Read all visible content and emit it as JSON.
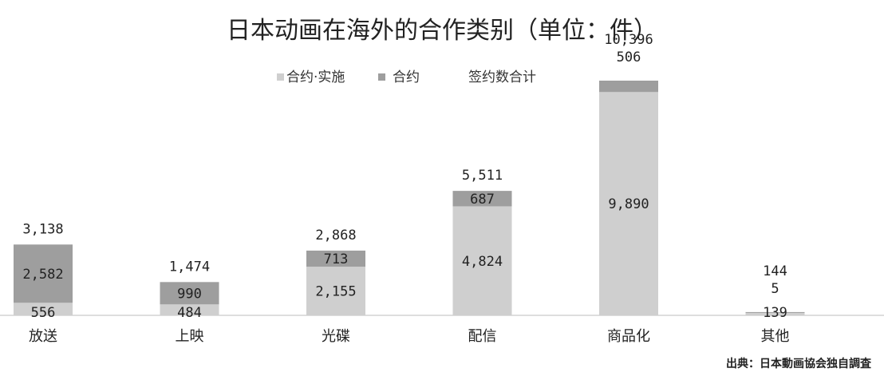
{
  "chart_data": {
    "type": "bar",
    "stacked": true,
    "title": "日本动画在海外的合作类别（单位：件）",
    "categories": [
      "放送",
      "上映",
      "光碟",
      "配信",
      "商品化",
      "其他"
    ],
    "series": [
      {
        "name": "合约·实施",
        "color": "#cfcfcf",
        "values": [
          556,
          484,
          2155,
          4824,
          9890,
          139
        ],
        "labels": [
          "556",
          "484",
          "2,155",
          "4,824",
          "9,890",
          "139"
        ]
      },
      {
        "name": "合约",
        "color": "#9e9e9e",
        "values": [
          2582,
          990,
          713,
          687,
          506,
          5
        ],
        "labels": [
          "2,582",
          "990",
          "713",
          "687",
          "506",
          "5"
        ]
      }
    ],
    "totals": [
      3138,
      1474,
      2868,
      5511,
      10396,
      144
    ],
    "total_labels": [
      "3,138",
      "1,474",
      "2,868",
      "5,511",
      "10,396",
      "144"
    ],
    "total_legend": "签约数合计",
    "ylim": [
      0,
      10396
    ],
    "grid": false,
    "legend_position": "top-center"
  },
  "source": "出典：日本動画協会独自調査"
}
